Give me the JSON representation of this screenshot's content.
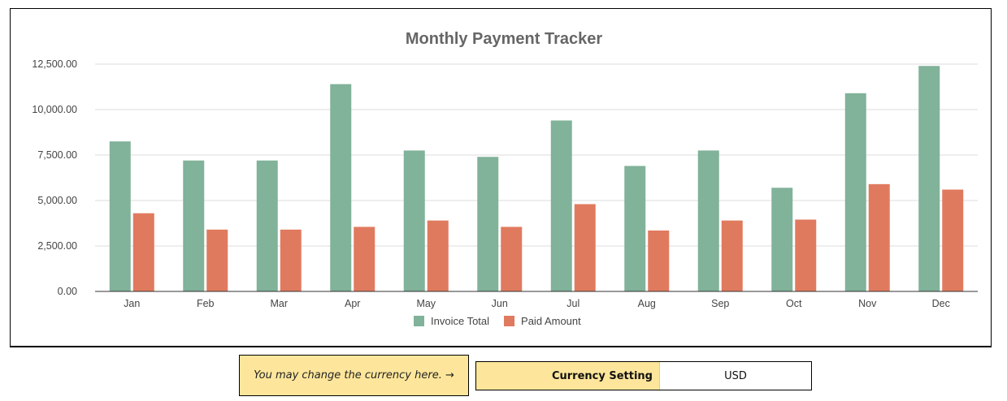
{
  "chart_data": {
    "type": "bar",
    "title": "Monthly Payment Tracker",
    "categories": [
      "Jan",
      "Feb",
      "Mar",
      "Apr",
      "May",
      "Jun",
      "Jul",
      "Aug",
      "Sep",
      "Oct",
      "Nov",
      "Dec"
    ],
    "series": [
      {
        "name": "Invoice Total",
        "color": "#81b29a",
        "values": [
          8250,
          7200,
          7200,
          11400,
          7750,
          7400,
          9400,
          6900,
          7750,
          5700,
          10900,
          12400
        ]
      },
      {
        "name": "Paid Amount",
        "color": "#e07a5f",
        "values": [
          4300,
          3400,
          3400,
          3550,
          3900,
          3550,
          4800,
          3350,
          3900,
          3950,
          5900,
          5600
        ]
      }
    ],
    "yticks": [
      "0.00",
      "2,500.00",
      "5,000.00",
      "7,500.00",
      "10,000.00",
      "12,500.00"
    ],
    "ylim": [
      0,
      12500
    ],
    "xlabel": "",
    "ylabel": "",
    "grid": true,
    "legend_position": "bottom"
  },
  "note": {
    "text": "You may change the currency here. →"
  },
  "currency": {
    "label": "Currency Setting",
    "value": "USD"
  }
}
